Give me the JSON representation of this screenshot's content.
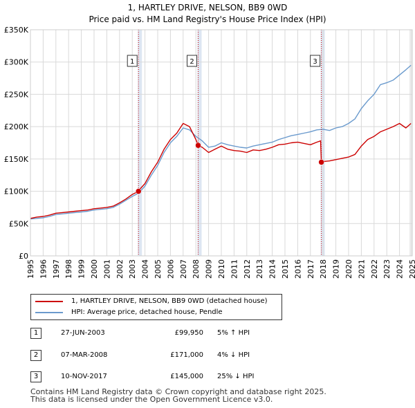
{
  "chart_data": {
    "type": "line",
    "title": "1, HARTLEY DRIVE, NELSON, BB9 0WD",
    "subtitle": "Price paid vs. HM Land Registry's House Price Index (HPI)",
    "xlabel": "",
    "ylabel": "",
    "xlim": [
      1995.0,
      2025.0
    ],
    "ylim": [
      0,
      350000
    ],
    "yticks": [
      0,
      50000,
      100000,
      150000,
      200000,
      250000,
      300000,
      350000
    ],
    "ytick_labels": [
      "£0",
      "£50K",
      "£100K",
      "£150K",
      "£200K",
      "£250K",
      "£300K",
      "£350K"
    ],
    "xtick_labels": [
      "1995",
      "1996",
      "1997",
      "1998",
      "1999",
      "2000",
      "2001",
      "2002",
      "2003",
      "2004",
      "2005",
      "2006",
      "2007",
      "2008",
      "2009",
      "2010",
      "2011",
      "2012",
      "2013",
      "2014",
      "2015",
      "2016",
      "2017",
      "2018",
      "2019",
      "2020",
      "2021",
      "2022",
      "2023",
      "2024",
      "2025"
    ],
    "grid": true,
    "colors": {
      "property": "#cc0000",
      "hpi": "#6a9acd",
      "marker_line": "#cc0000",
      "shade": "#dde6f2",
      "grid": "#d9d9d9"
    },
    "series": [
      {
        "name": "1, HARTLEY DRIVE, NELSON, BB9 0WD (detached house)",
        "color": "#cc0000",
        "x": [
          1995.0,
          1995.5,
          1996.0,
          1996.5,
          1997.0,
          1997.5,
          1998.0,
          1998.5,
          1999.0,
          1999.5,
          2000.0,
          2000.5,
          2001.0,
          2001.5,
          2002.0,
          2002.5,
          2003.0,
          2003.49,
          2003.5,
          2004.0,
          2004.5,
          2005.0,
          2005.5,
          2006.0,
          2006.5,
          2007.0,
          2007.5,
          2008.0,
          2008.18,
          2008.5,
          2009.0,
          2009.5,
          2010.0,
          2010.5,
          2011.0,
          2011.5,
          2012.0,
          2012.5,
          2013.0,
          2013.5,
          2014.0,
          2014.5,
          2015.0,
          2015.5,
          2016.0,
          2016.5,
          2017.0,
          2017.5,
          2017.8,
          2017.86,
          2018.0,
          2018.5,
          2019.0,
          2019.5,
          2020.0,
          2020.5,
          2021.0,
          2021.5,
          2022.0,
          2022.5,
          2023.0,
          2023.5,
          2024.0,
          2024.5,
          2024.9
        ],
        "values": [
          58000,
          60000,
          61000,
          63000,
          66000,
          67000,
          68000,
          69000,
          70000,
          71000,
          73000,
          74000,
          75000,
          77000,
          82000,
          88000,
          95000,
          99950,
          101000,
          112000,
          130000,
          145000,
          165000,
          180000,
          190000,
          205000,
          200000,
          180000,
          171000,
          168000,
          160000,
          165000,
          170000,
          165000,
          163000,
          162000,
          160000,
          164000,
          163000,
          165000,
          168000,
          172000,
          173000,
          175000,
          176000,
          174000,
          172000,
          176000,
          178000,
          145000,
          146000,
          147000,
          149000,
          151000,
          153000,
          157000,
          170000,
          180000,
          185000,
          192000,
          196000,
          200000,
          205000,
          198000,
          205000
        ]
      },
      {
        "name": "HPI: Average price, detached house, Pendle",
        "color": "#6a9acd",
        "x": [
          1995.0,
          1995.5,
          1996.0,
          1996.5,
          1997.0,
          1997.5,
          1998.0,
          1998.5,
          1999.0,
          1999.5,
          2000.0,
          2000.5,
          2001.0,
          2001.5,
          2002.0,
          2002.5,
          2003.0,
          2003.5,
          2004.0,
          2004.5,
          2005.0,
          2005.5,
          2006.0,
          2006.5,
          2007.0,
          2007.5,
          2008.0,
          2008.5,
          2009.0,
          2009.5,
          2010.0,
          2010.5,
          2011.0,
          2011.5,
          2012.0,
          2012.5,
          2013.0,
          2013.5,
          2014.0,
          2014.5,
          2015.0,
          2015.5,
          2016.0,
          2016.5,
          2017.0,
          2017.5,
          2018.0,
          2018.5,
          2019.0,
          2019.5,
          2020.0,
          2020.5,
          2021.0,
          2021.5,
          2022.0,
          2022.5,
          2023.0,
          2023.5,
          2024.0,
          2024.5,
          2024.9
        ],
        "values": [
          57000,
          58000,
          59000,
          61000,
          64000,
          65000,
          66000,
          67000,
          68000,
          69000,
          71000,
          72000,
          73000,
          75000,
          80000,
          86000,
          92000,
          97000,
          108000,
          125000,
          140000,
          160000,
          175000,
          185000,
          198000,
          195000,
          185000,
          178000,
          168000,
          170000,
          175000,
          172000,
          170000,
          168000,
          167000,
          170000,
          172000,
          174000,
          176000,
          180000,
          183000,
          186000,
          188000,
          190000,
          192000,
          195000,
          196000,
          194000,
          198000,
          200000,
          205000,
          212000,
          228000,
          240000,
          250000,
          265000,
          268000,
          272000,
          280000,
          288000,
          295000
        ]
      }
    ],
    "sales": [
      {
        "label": "1",
        "x": 2003.49,
        "value": 99950
      },
      {
        "label": "2",
        "x": 2008.18,
        "value": 171000
      },
      {
        "label": "3",
        "x": 2017.86,
        "value": 145000
      }
    ]
  },
  "legend": {
    "property_label": "1, HARTLEY DRIVE, NELSON, BB9 0WD (detached house)",
    "hpi_label": "HPI: Average price, detached house, Pendle"
  },
  "transactions": [
    {
      "num": "1",
      "date": "27-JUN-2003",
      "price": "£99,950",
      "hpi": "5% ↑ HPI"
    },
    {
      "num": "2",
      "date": "07-MAR-2008",
      "price": "£171,000",
      "hpi": "4% ↓ HPI"
    },
    {
      "num": "3",
      "date": "10-NOV-2017",
      "price": "£145,000",
      "hpi": "25% ↓ HPI"
    }
  ],
  "footer": {
    "line1": "Contains HM Land Registry data © Crown copyright and database right 2025.",
    "line2": "This data is licensed under the Open Government Licence v3.0."
  }
}
